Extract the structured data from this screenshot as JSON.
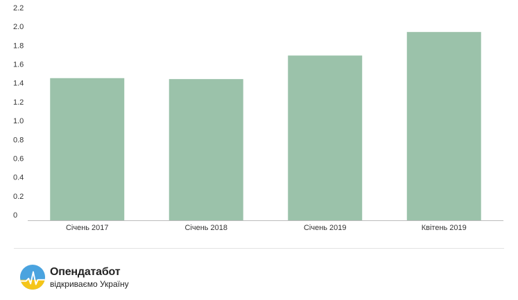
{
  "chart_data": {
    "type": "bar",
    "categories": [
      "Січень 2017",
      "Січень 2018",
      "Січень 2019",
      "Квітень 2019"
    ],
    "values": [
      1.51,
      1.5,
      1.75,
      2.0
    ],
    "y_ticks": [
      "0",
      "0.2",
      "0.4",
      "0.6",
      "0.8",
      "1.0",
      "1.2",
      "1.4",
      "1.6",
      "1.8",
      "2.0",
      "2.2"
    ],
    "ylim": [
      0,
      2.2
    ],
    "title": "",
    "xlabel": "",
    "ylabel": "",
    "grid": false,
    "bar_color": "#9bc2aa"
  },
  "footer": {
    "brand_name": "Опендатабот",
    "brand_tagline": "відкриваємо Україну"
  },
  "colors": {
    "axis": "#bbbbbb",
    "logo_sky": "#4aa3df",
    "logo_field": "#f5c518"
  },
  "icons": {
    "logo": "opendatabot-logo-icon"
  }
}
